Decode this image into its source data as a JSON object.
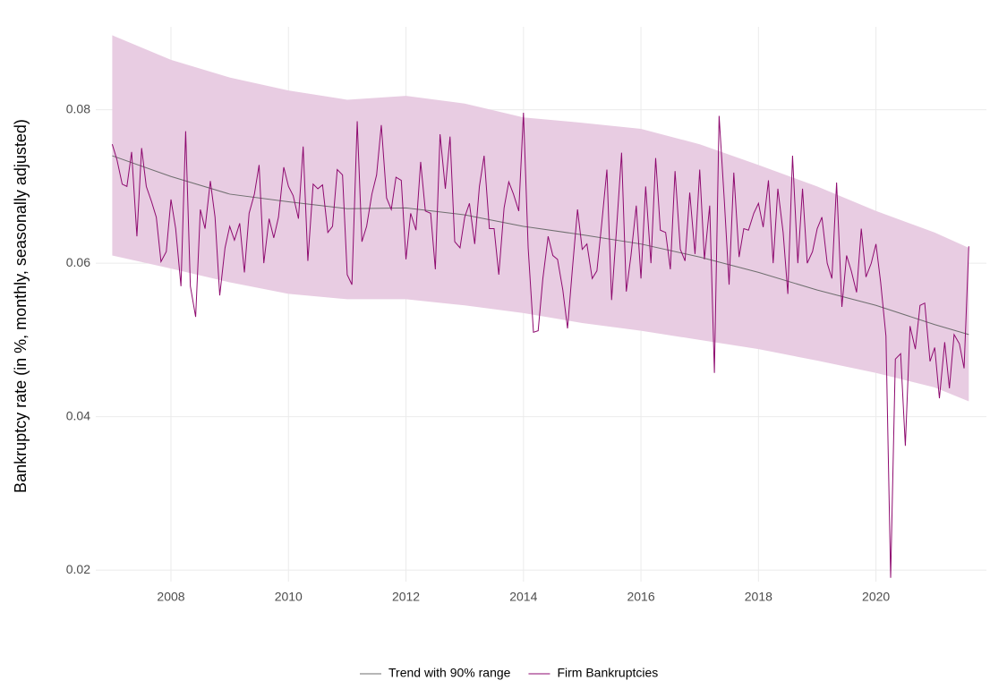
{
  "chart_data": {
    "type": "line",
    "y_label": "Bankruptcy rate (in %, monthly, seasonally adjusted)",
    "xlim": [
      2006.72,
      2021.88
    ],
    "xticks": [
      2008,
      2010,
      2012,
      2014,
      2016,
      2018,
      2020
    ],
    "ylim": [
      0.0185,
      0.0908
    ],
    "yticks": [
      0.02,
      0.04,
      0.06,
      0.08
    ],
    "grid": true,
    "legend": "bottom",
    "series": [
      {
        "name": "Trend with 90% range",
        "color": "#6e6e6e",
        "band_color": "#e8cce2",
        "x": [
          2007,
          2008,
          2009,
          2010,
          2011,
          2012,
          2013,
          2014,
          2015,
          2016,
          2017,
          2018,
          2019,
          2020,
          2021,
          2021.58
        ],
        "values": [
          0.074,
          0.0713,
          0.069,
          0.068,
          0.0671,
          0.0672,
          0.0663,
          0.0648,
          0.0637,
          0.0625,
          0.0608,
          0.0588,
          0.0565,
          0.0545,
          0.052,
          0.0507
        ],
        "upper": [
          0.0897,
          0.0865,
          0.0842,
          0.0825,
          0.0813,
          0.0818,
          0.0808,
          0.079,
          0.0783,
          0.0775,
          0.0755,
          0.0728,
          0.07,
          0.0668,
          0.064,
          0.062
        ],
        "lower": [
          0.061,
          0.0593,
          0.0575,
          0.056,
          0.0553,
          0.0553,
          0.0545,
          0.0535,
          0.0522,
          0.0512,
          0.05,
          0.0488,
          0.0473,
          0.0457,
          0.0438,
          0.042
        ]
      },
      {
        "name": "Firm Bankruptcies",
        "color": "#8e0a6f",
        "x": [
          2007,
          2007.08,
          2007.17,
          2007.25,
          2007.33,
          2007.42,
          2007.5,
          2007.58,
          2007.67,
          2007.75,
          2007.83,
          2007.92,
          2008,
          2008.08,
          2008.17,
          2008.25,
          2008.33,
          2008.42,
          2008.5,
          2008.58,
          2008.67,
          2008.75,
          2008.83,
          2008.92,
          2009,
          2009.08,
          2009.17,
          2009.25,
          2009.33,
          2009.42,
          2009.5,
          2009.58,
          2009.67,
          2009.75,
          2009.83,
          2009.92,
          2010,
          2010.08,
          2010.17,
          2010.25,
          2010.33,
          2010.42,
          2010.5,
          2010.58,
          2010.67,
          2010.75,
          2010.83,
          2010.92,
          2011,
          2011.08,
          2011.17,
          2011.25,
          2011.33,
          2011.42,
          2011.5,
          2011.58,
          2011.67,
          2011.75,
          2011.83,
          2011.92,
          2012,
          2012.08,
          2012.17,
          2012.25,
          2012.33,
          2012.42,
          2012.5,
          2012.58,
          2012.67,
          2012.75,
          2012.83,
          2012.92,
          2013,
          2013.08,
          2013.17,
          2013.25,
          2013.33,
          2013.42,
          2013.5,
          2013.58,
          2013.67,
          2013.75,
          2013.83,
          2013.92,
          2014,
          2014.08,
          2014.17,
          2014.25,
          2014.33,
          2014.42,
          2014.5,
          2014.58,
          2014.67,
          2014.75,
          2014.83,
          2014.92,
          2015,
          2015.08,
          2015.17,
          2015.25,
          2015.33,
          2015.42,
          2015.5,
          2015.58,
          2015.67,
          2015.75,
          2015.83,
          2015.92,
          2016,
          2016.08,
          2016.17,
          2016.25,
          2016.33,
          2016.42,
          2016.5,
          2016.58,
          2016.67,
          2016.75,
          2016.83,
          2016.92,
          2017,
          2017.08,
          2017.17,
          2017.25,
          2017.33,
          2017.42,
          2017.5,
          2017.58,
          2017.67,
          2017.75,
          2017.83,
          2017.92,
          2018,
          2018.08,
          2018.17,
          2018.25,
          2018.33,
          2018.42,
          2018.5,
          2018.58,
          2018.67,
          2018.75,
          2018.83,
          2018.92,
          2019,
          2019.08,
          2019.17,
          2019.25,
          2019.33,
          2019.42,
          2019.5,
          2019.58,
          2019.67,
          2019.75,
          2019.83,
          2019.92,
          2020,
          2020.08,
          2020.17,
          2020.25,
          2020.33,
          2020.42,
          2020.5,
          2020.58,
          2020.67,
          2020.75,
          2020.83,
          2020.92,
          2021,
          2021.08,
          2021.17,
          2021.25,
          2021.33,
          2021.42,
          2021.5,
          2021.58
        ],
        "values": [
          0.0755,
          0.0735,
          0.0703,
          0.07,
          0.0745,
          0.0635,
          0.075,
          0.07,
          0.068,
          0.066,
          0.0602,
          0.0615,
          0.0683,
          0.0645,
          0.057,
          0.0772,
          0.057,
          0.053,
          0.067,
          0.0645,
          0.0707,
          0.066,
          0.0558,
          0.062,
          0.0648,
          0.063,
          0.0652,
          0.0588,
          0.0665,
          0.069,
          0.0728,
          0.06,
          0.0658,
          0.0633,
          0.066,
          0.0725,
          0.07,
          0.0688,
          0.0658,
          0.0752,
          0.0603,
          0.0703,
          0.0697,
          0.0702,
          0.064,
          0.0648,
          0.0722,
          0.0715,
          0.0585,
          0.0572,
          0.0785,
          0.0628,
          0.0648,
          0.069,
          0.0715,
          0.078,
          0.0685,
          0.067,
          0.0712,
          0.0708,
          0.0605,
          0.0665,
          0.0643,
          0.0732,
          0.0668,
          0.0665,
          0.0592,
          0.0768,
          0.0697,
          0.0765,
          0.0628,
          0.062,
          0.066,
          0.0678,
          0.0625,
          0.07,
          0.074,
          0.0645,
          0.0645,
          0.0585,
          0.0672,
          0.0706,
          0.069,
          0.0668,
          0.0796,
          0.062,
          0.051,
          0.0512,
          0.058,
          0.0635,
          0.061,
          0.0605,
          0.0565,
          0.0515,
          0.059,
          0.067,
          0.0618,
          0.0625,
          0.058,
          0.059,
          0.065,
          0.0722,
          0.0552,
          0.064,
          0.0744,
          0.0563,
          0.061,
          0.0675,
          0.058,
          0.07,
          0.06,
          0.0737,
          0.0643,
          0.064,
          0.0592,
          0.072,
          0.0618,
          0.0603,
          0.0692,
          0.0612,
          0.0722,
          0.0605,
          0.0675,
          0.0457,
          0.0792,
          0.068,
          0.0572,
          0.0718,
          0.0608,
          0.0645,
          0.0643,
          0.0665,
          0.0678,
          0.0647,
          0.0708,
          0.06,
          0.0697,
          0.064,
          0.056,
          0.074,
          0.06,
          0.0697,
          0.06,
          0.0615,
          0.0645,
          0.066,
          0.06,
          0.058,
          0.0705,
          0.0543,
          0.061,
          0.059,
          0.0562,
          0.0645,
          0.0582,
          0.06,
          0.0625,
          0.0575,
          0.0505,
          0.019,
          0.0475,
          0.0482,
          0.0362,
          0.0518,
          0.0488,
          0.0545,
          0.0548,
          0.0472,
          0.049,
          0.0424,
          0.0497,
          0.0437,
          0.0507,
          0.0495,
          0.0463,
          0.0622
        ]
      }
    ]
  }
}
